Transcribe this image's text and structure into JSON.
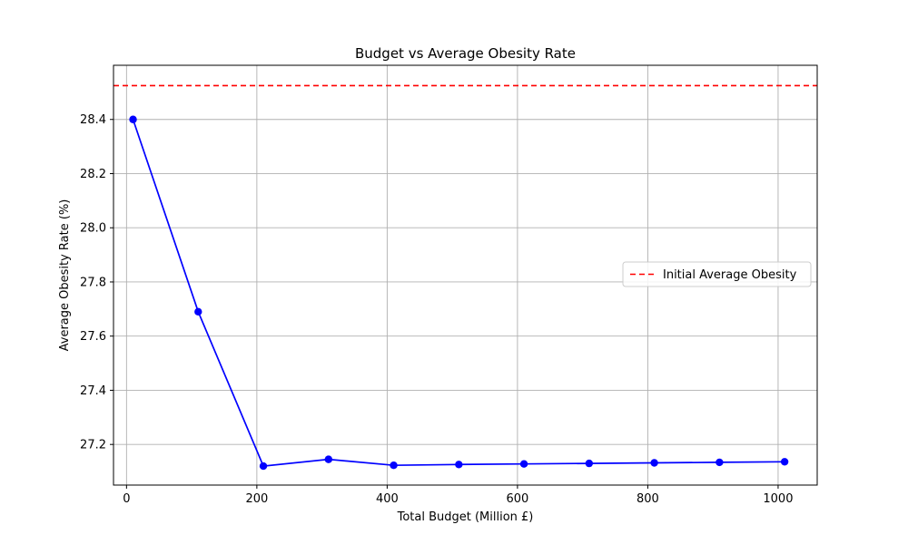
{
  "chart_data": {
    "type": "line",
    "title": "Budget vs Average Obesity Rate",
    "xlabel": "Total Budget (Million £)",
    "ylabel": "Average Obesity Rate (%)",
    "xlim": [
      -20,
      1060
    ],
    "ylim": [
      27.05,
      28.6
    ],
    "xticks": [
      0,
      200,
      400,
      600,
      800,
      1000
    ],
    "xtick_labels": [
      "0",
      "200",
      "400",
      "600",
      "800",
      "1000"
    ],
    "yticks": [
      27.2,
      27.4,
      27.6,
      27.8,
      28.0,
      28.2,
      28.4
    ],
    "ytick_labels": [
      "27.2",
      "27.4",
      "27.6",
      "27.8",
      "28.0",
      "28.2",
      "28.4"
    ],
    "grid": true,
    "legend_position": "center-right",
    "series": [
      {
        "color": "#0000ff",
        "marker": "circle",
        "x": [
          10,
          110,
          210,
          310,
          410,
          510,
          610,
          710,
          810,
          910,
          1010
        ],
        "y": [
          28.4,
          27.69,
          27.12,
          27.145,
          27.123,
          27.126,
          27.128,
          27.13,
          27.132,
          27.134,
          27.136
        ]
      }
    ],
    "reference_lines": [
      {
        "name": "Initial Average Obesity",
        "orientation": "horizontal",
        "y": 28.525,
        "color": "#ff0000",
        "style": "dashed"
      }
    ]
  }
}
